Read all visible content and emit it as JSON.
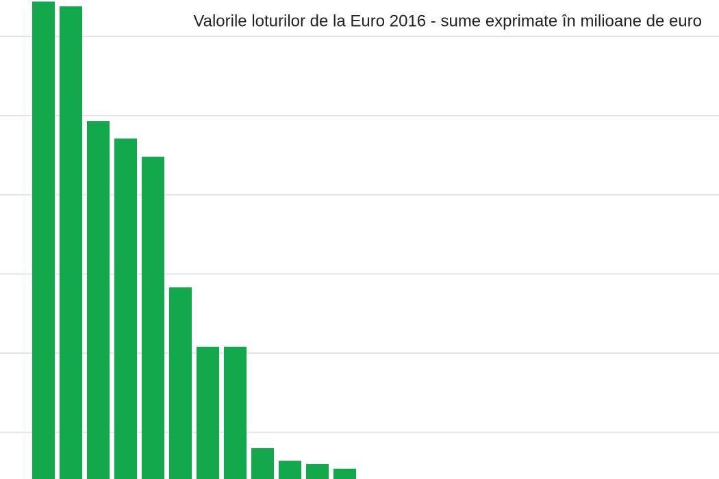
{
  "chart_data": {
    "type": "bar",
    "title": "Valorile loturilor de la Euro 2016 - sume exprimate în milioane de euro",
    "categories": [
      null,
      null,
      null,
      null,
      null,
      null,
      null,
      null,
      null,
      null,
      null,
      null
    ],
    "values": [
      644,
      638,
      493,
      471,
      448,
      283,
      208,
      208,
      80,
      64,
      60,
      54
    ],
    "color": "#12a84c",
    "ylim": [
      41,
      646
    ],
    "yticks": [
      100,
      200,
      300,
      400,
      500,
      600
    ],
    "grid": true
  }
}
